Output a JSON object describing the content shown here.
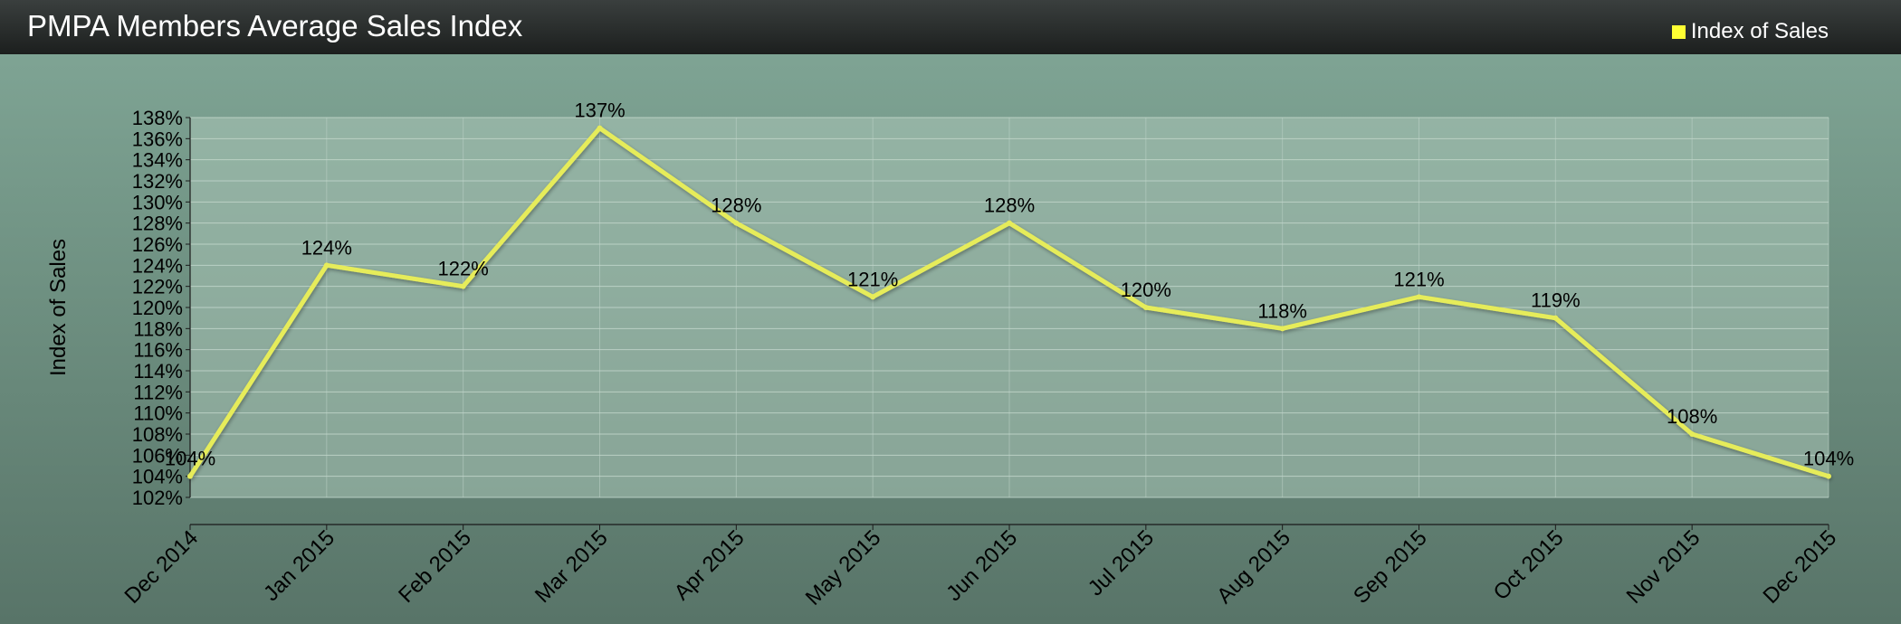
{
  "chart_data": {
    "type": "line",
    "title": "PMPA Members Average Sales Index",
    "ylabel": "Index of Sales",
    "xlabel": "",
    "categories": [
      "Dec 2014",
      "Jan 2015",
      "Feb 2015",
      "Mar 2015",
      "Apr 2015",
      "May 2015",
      "Jun 2015",
      "Jul 2015",
      "Aug 2015",
      "Sep 2015",
      "Oct 2015",
      "Nov 2015",
      "Dec 2015"
    ],
    "series": [
      {
        "name": "Index of Sales",
        "values": [
          104,
          124,
          122,
          137,
          128,
          121,
          128,
          120,
          118,
          121,
          119,
          108,
          104
        ],
        "labels": [
          "104%",
          "124%",
          "122%",
          "137%",
          "128%",
          "121%",
          "128%",
          "120%",
          "118%",
          "121%",
          "119%",
          "108%",
          "104%"
        ],
        "color": "#e6ec5a"
      }
    ],
    "ylim": [
      102,
      138
    ],
    "ytick_step": 2,
    "ytick_suffix": "%",
    "grid": true,
    "legend_position": "top-right"
  },
  "colors": {
    "plot_area": "#a9c4b6",
    "gridline": "#c2d6cb",
    "axis": "#1a1a1a",
    "text": "#000000",
    "legend_swatch": "#ffff33"
  }
}
